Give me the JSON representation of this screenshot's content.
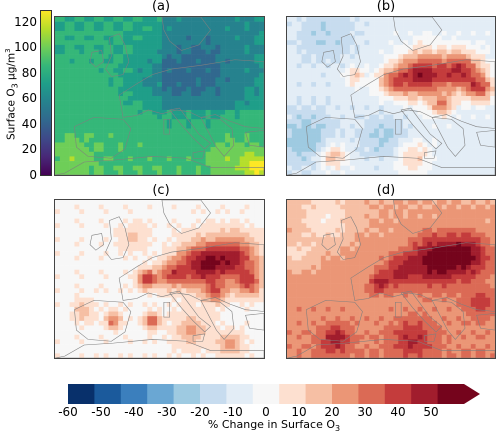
{
  "panels": [
    {
      "id": "a",
      "title": "(a)"
    },
    {
      "id": "b",
      "title": "(b)"
    },
    {
      "id": "c",
      "title": "(c)"
    },
    {
      "id": "d",
      "title": "(d)"
    }
  ],
  "colors": {
    "viridis": [
      "#440154",
      "#482878",
      "#3e4989",
      "#31688e",
      "#26828e",
      "#1f9e89",
      "#35b779",
      "#6ece58",
      "#b5de2b",
      "#fde725"
    ],
    "divergent": [
      "#08306b",
      "#1b5a9c",
      "#3b7fbd",
      "#6aa7d3",
      "#9ecae1",
      "#c7dcef",
      "#e3edf6",
      "#f7f7f7",
      "#fde0d0",
      "#f6bfa4",
      "#eb9676",
      "#db6a55",
      "#c43c3c",
      "#a11d2d",
      "#75041c"
    ]
  },
  "chart_data": [
    {
      "type": "heatmap",
      "panel": "(a)",
      "colorbar": {
        "label_prefix": "Surface O",
        "label_sub": "3",
        "label_suffix": " µg/m",
        "label_sup": "3",
        "ticks": [
          0,
          20,
          40,
          60,
          80,
          100,
          120
        ],
        "range": [
          0,
          130
        ],
        "colormap": "viridis"
      }
    },
    {
      "type": "heatmap",
      "panel": "(b)",
      "colormap": "divergent"
    },
    {
      "type": "heatmap",
      "panel": "(c)",
      "colormap": "divergent"
    },
    {
      "type": "heatmap",
      "panel": "(d)",
      "colormap": "divergent"
    },
    {
      "type": "colorbar",
      "label_prefix": "% Change in Surface O",
      "label_sub": "3",
      "ticks": [
        -60,
        -50,
        -40,
        -30,
        -20,
        -10,
        0,
        10,
        20,
        30,
        40,
        50
      ],
      "range": [
        -60,
        60
      ]
    }
  ]
}
